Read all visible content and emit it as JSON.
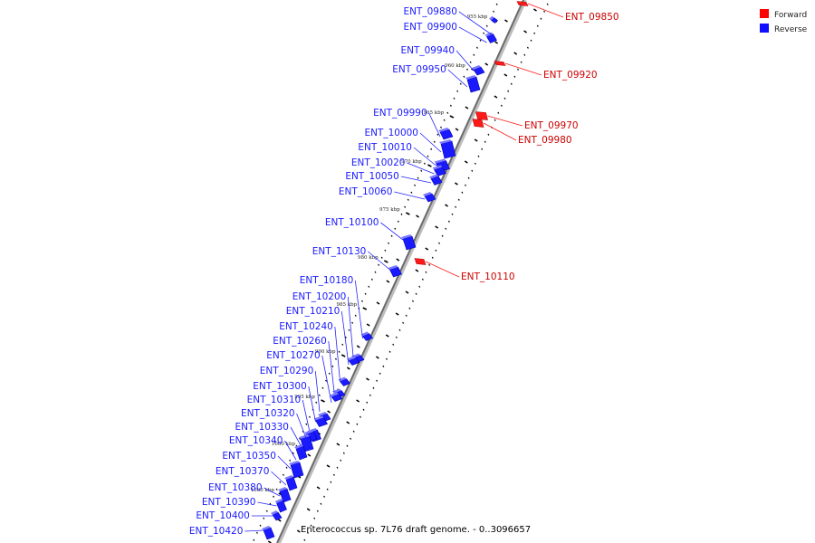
{
  "caption": "Enterococcus sp. 7L76 draft genome. - 0..3096657",
  "legend": {
    "forward": {
      "label": "Forward",
      "color": "#ff0000"
    },
    "reverse": {
      "label": "Reverse",
      "color": "#1010ff"
    }
  },
  "tick_labels": [
    "955 kbp",
    "960 kbp",
    "965 kbp",
    "970 kbp",
    "975 kbp",
    "980 kbp",
    "985 kbp",
    "990 kbp",
    "995 kbp",
    "1000 kbp",
    "1005 kbp"
  ],
  "forward_genes": [
    {
      "label": "ENT_09850"
    },
    {
      "label": "ENT_09920"
    },
    {
      "label": "ENT_09970"
    },
    {
      "label": "ENT_09980"
    },
    {
      "label": "ENT_10110"
    }
  ],
  "reverse_genes": [
    {
      "label": "ENT_09880"
    },
    {
      "label": "ENT_09900"
    },
    {
      "label": "ENT_09940"
    },
    {
      "label": "ENT_09950"
    },
    {
      "label": "ENT_09990"
    },
    {
      "label": "ENT_10000"
    },
    {
      "label": "ENT_10010"
    },
    {
      "label": "ENT_10020"
    },
    {
      "label": "ENT_10050"
    },
    {
      "label": "ENT_10060"
    },
    {
      "label": "ENT_10100"
    },
    {
      "label": "ENT_10130"
    },
    {
      "label": "ENT_10180"
    },
    {
      "label": "ENT_10200"
    },
    {
      "label": "ENT_10210"
    },
    {
      "label": "ENT_10240"
    },
    {
      "label": "ENT_10260"
    },
    {
      "label": "ENT_10270"
    },
    {
      "label": "ENT_10290"
    },
    {
      "label": "ENT_10300"
    },
    {
      "label": "ENT_10310"
    },
    {
      "label": "ENT_10320"
    },
    {
      "label": "ENT_10330"
    },
    {
      "label": "ENT_10340"
    },
    {
      "label": "ENT_10350"
    },
    {
      "label": "ENT_10370"
    },
    {
      "label": "ENT_10380"
    },
    {
      "label": "ENT_10390"
    },
    {
      "label": "ENT_10400"
    },
    {
      "label": "ENT_10420"
    }
  ]
}
